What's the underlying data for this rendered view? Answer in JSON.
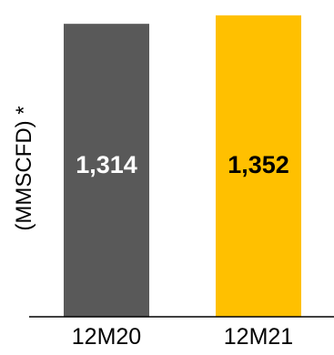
{
  "chart_data": {
    "type": "bar",
    "categories": [
      "12M20",
      "12M21"
    ],
    "values": [
      1314,
      1352
    ],
    "data_labels": [
      "1,314",
      "1,352"
    ],
    "title": "",
    "xlabel": "",
    "ylabel": "(MMSCFD) *",
    "ylim": [
      0,
      1380
    ],
    "grid": false,
    "legend": "none",
    "colors": [
      "#595959",
      "#FFC000"
    ],
    "label_colors": [
      "#FFFFFF",
      "#000000"
    ]
  }
}
